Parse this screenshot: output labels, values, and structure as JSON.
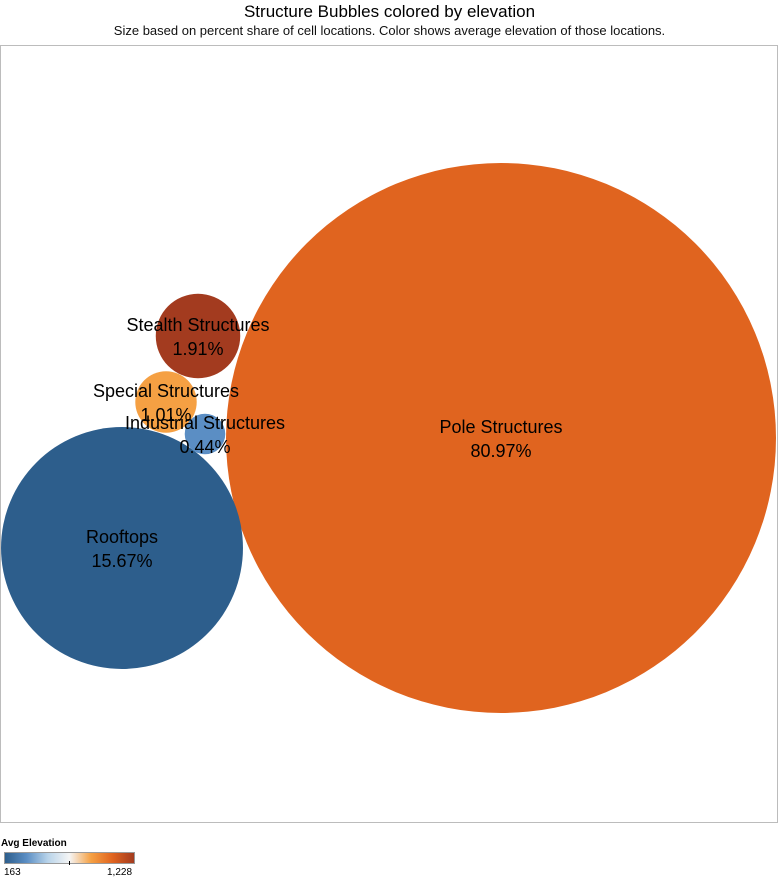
{
  "title": "Structure Bubbles colored by elevation",
  "subtitle": "Size based on percent share of cell locations. Color shows average elevation of those locations.",
  "chart_data": {
    "type": "bubble",
    "size_measure": "percent share of cell locations",
    "color_measure": "Avg Elevation",
    "bubbles": [
      {
        "label": "Pole Structures",
        "value_label": "80.97%",
        "value": 80.97,
        "color": "#e0641f"
      },
      {
        "label": "Rooftops",
        "value_label": "15.67%",
        "value": 15.67,
        "color": "#2d5e8c"
      },
      {
        "label": "Stealth Structures",
        "value_label": "1.91%",
        "value": 1.91,
        "color": "#a33b1f"
      },
      {
        "label": "Special Structures",
        "value_label": "1.01%",
        "value": 1.01,
        "color": "#f5a043"
      },
      {
        "label": "Industrial Structures",
        "value_label": "0.44%",
        "value": 0.44,
        "color": "#5b8ec4"
      }
    ],
    "legend": {
      "title": "Avg Elevation",
      "min_label": "163",
      "max_label": "1,228",
      "gradient": [
        "#2d5e8c",
        "#5b8ec4",
        "#b9d4ea",
        "#f5f5f5",
        "#f5a043",
        "#e0641f",
        "#a33b1f"
      ]
    }
  }
}
